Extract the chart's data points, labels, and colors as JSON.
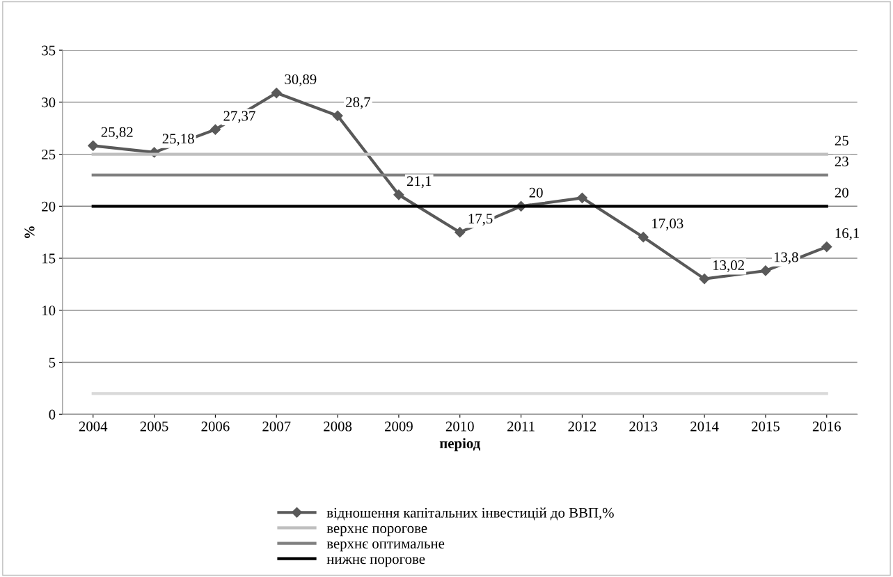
{
  "chart_data": {
    "type": "line",
    "xlabel": "період",
    "ylabel": "%",
    "categories": [
      "2004",
      "2005",
      "2006",
      "2007",
      "2008",
      "2009",
      "2010",
      "2011",
      "2012",
      "2013",
      "2014",
      "2015",
      "2016"
    ],
    "series": [
      {
        "name": "відношення капітальних інвестицій до ВВП,%",
        "color": "#595959",
        "marker": "diamond",
        "values": [
          25.82,
          25.18,
          27.37,
          30.89,
          28.7,
          21.1,
          17.5,
          20,
          20.8,
          17.03,
          13.02,
          13.8,
          16.1
        ],
        "value_labels": [
          "25,82",
          "25,18",
          "27,37",
          "30,89",
          "28,7",
          "21,1",
          "17,5",
          "20",
          null,
          "17,03",
          "13,02",
          "13,8",
          "16,1"
        ]
      },
      {
        "name": "верхнє порогове",
        "color": "#bfbfbf",
        "values": [
          25,
          25,
          25,
          25,
          25,
          25,
          25,
          25,
          25,
          25,
          25,
          25,
          25
        ],
        "value_labels": [
          null,
          null,
          null,
          null,
          null,
          null,
          null,
          null,
          null,
          null,
          null,
          null,
          "25"
        ]
      },
      {
        "name": "верхнє оптимальне",
        "color": "#808080",
        "values": [
          23,
          23,
          23,
          23,
          23,
          23,
          23,
          23,
          23,
          23,
          23,
          23,
          23
        ],
        "value_labels": [
          null,
          null,
          null,
          null,
          null,
          null,
          null,
          null,
          null,
          null,
          null,
          null,
          "23"
        ]
      },
      {
        "name": "нижнє порогове",
        "color": "#000000",
        "values": [
          20,
          20,
          20,
          20,
          20,
          20,
          20,
          20,
          20,
          20,
          20,
          20,
          20
        ],
        "value_labels": [
          null,
          null,
          null,
          null,
          null,
          null,
          null,
          null,
          null,
          null,
          null,
          null,
          "20"
        ]
      },
      {
        "color": "#d9d9d9",
        "values": [
          2,
          2,
          2,
          2,
          2,
          2,
          2,
          2,
          2,
          2,
          2,
          2,
          2
        ]
      }
    ],
    "ylim": [
      0,
      35
    ],
    "yticks": [
      0,
      5,
      10,
      15,
      20,
      25,
      30,
      35
    ],
    "grid": "y",
    "legend": "bottom",
    "line_style": "solid"
  }
}
